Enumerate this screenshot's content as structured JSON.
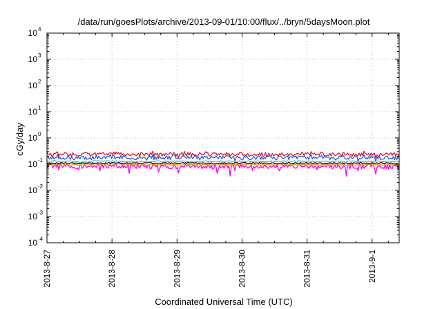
{
  "chart_data": {
    "type": "line",
    "title": "/data/run/goesPlots/archive/2013-09-01/10:00/flux/../bryn/5daysMoon.plot",
    "xlabel": "Coordinated Universal Time (UTC)",
    "ylabel": "cGy/day",
    "yscale": "log",
    "ylim": [
      0.0001,
      10000
    ],
    "xlim": [
      "2013-08-27T00:00",
      "2013-09-01T10:00"
    ],
    "grid": true,
    "legend": "none",
    "y_ticks": [
      {
        "value": 0.0001,
        "base": "10",
        "exp": "-4"
      },
      {
        "value": 0.001,
        "base": "10",
        "exp": "-3"
      },
      {
        "value": 0.01,
        "base": "10",
        "exp": "-2"
      },
      {
        "value": 0.1,
        "base": "10",
        "exp": "-1"
      },
      {
        "value": 1,
        "base": "10",
        "exp": "0"
      },
      {
        "value": 10,
        "base": "10",
        "exp": "1"
      },
      {
        "value": 100,
        "base": "10",
        "exp": "2"
      },
      {
        "value": 1000,
        "base": "10",
        "exp": "3"
      },
      {
        "value": 10000,
        "base": "10",
        "exp": "4"
      }
    ],
    "x_ticks": [
      {
        "value": "2013-08-27T00:00",
        "label": "2013-8-27"
      },
      {
        "value": "2013-08-28T00:00",
        "label": "2013-8-28"
      },
      {
        "value": "2013-08-29T00:00",
        "label": "2013-8-29"
      },
      {
        "value": "2013-08-30T00:00",
        "label": "2013-8-30"
      },
      {
        "value": "2013-08-31T00:00",
        "label": "2013-8-31"
      },
      {
        "value": "2013-09-01T00:00",
        "label": "2013-9-1"
      }
    ],
    "series": [
      {
        "color": "#ff00ff",
        "x": [
          "2013-08-27T00:00",
          "2013-08-27T12:00",
          "2013-08-28T00:00",
          "2013-08-28T12:00",
          "2013-08-29T00:00",
          "2013-08-29T12:00",
          "2013-08-30T00:00",
          "2013-08-30T12:00",
          "2013-08-31T00:00",
          "2013-08-31T12:00",
          "2013-09-01T00:00",
          "2013-09-01T10:00"
        ],
        "values": [
          0.085,
          0.08,
          0.085,
          0.08,
          0.082,
          0.08,
          0.085,
          0.08,
          0.082,
          0.08,
          0.083,
          0.078
        ]
      },
      {
        "color": "#ff8c00",
        "x": [
          "2013-08-27T00:00",
          "2013-08-27T12:00",
          "2013-08-28T00:00",
          "2013-08-28T12:00",
          "2013-08-29T00:00",
          "2013-08-29T12:00",
          "2013-08-30T00:00",
          "2013-08-30T12:00",
          "2013-08-31T00:00",
          "2013-08-31T12:00",
          "2013-09-01T00:00",
          "2013-09-01T10:00"
        ],
        "values": [
          0.098,
          0.097,
          0.099,
          0.096,
          0.098,
          0.097,
          0.098,
          0.096,
          0.097,
          0.096,
          0.098,
          0.095
        ]
      },
      {
        "color": "#000000",
        "x": [
          "2013-08-27T00:00",
          "2013-08-27T12:00",
          "2013-08-28T00:00",
          "2013-08-28T12:00",
          "2013-08-29T00:00",
          "2013-08-29T12:00",
          "2013-08-30T00:00",
          "2013-08-30T12:00",
          "2013-08-31T00:00",
          "2013-08-31T12:00",
          "2013-09-01T00:00",
          "2013-09-01T10:00"
        ],
        "values": [
          0.11,
          0.108,
          0.11,
          0.109,
          0.11,
          0.108,
          0.11,
          0.109,
          0.11,
          0.108,
          0.11,
          0.107
        ]
      },
      {
        "color": "#20c8c8",
        "x": [
          "2013-08-27T00:00",
          "2013-08-27T12:00",
          "2013-08-28T00:00",
          "2013-08-28T12:00",
          "2013-08-29T00:00",
          "2013-08-29T12:00",
          "2013-08-30T00:00",
          "2013-08-30T12:00",
          "2013-08-31T00:00",
          "2013-08-31T12:00",
          "2013-09-01T00:00",
          "2013-09-01T10:00"
        ],
        "values": [
          0.13,
          0.125,
          0.13,
          0.126,
          0.128,
          0.125,
          0.13,
          0.126,
          0.128,
          0.125,
          0.128,
          0.123
        ]
      },
      {
        "color": "#1e50ff",
        "x": [
          "2013-08-27T00:00",
          "2013-08-27T12:00",
          "2013-08-28T00:00",
          "2013-08-28T12:00",
          "2013-08-29T00:00",
          "2013-08-29T12:00",
          "2013-08-30T00:00",
          "2013-08-30T12:00",
          "2013-08-31T00:00",
          "2013-08-31T12:00",
          "2013-09-01T00:00",
          "2013-09-01T10:00"
        ],
        "values": [
          0.18,
          0.17,
          0.19,
          0.17,
          0.18,
          0.17,
          0.18,
          0.17,
          0.18,
          0.17,
          0.18,
          0.17
        ]
      },
      {
        "color": "#e8001a",
        "x": [
          "2013-08-27T00:00",
          "2013-08-27T12:00",
          "2013-08-28T00:00",
          "2013-08-28T12:00",
          "2013-08-29T00:00",
          "2013-08-29T12:00",
          "2013-08-30T00:00",
          "2013-08-30T12:00",
          "2013-08-31T00:00",
          "2013-08-31T12:00",
          "2013-09-01T00:00",
          "2013-09-01T10:00"
        ],
        "values": [
          0.24,
          0.23,
          0.25,
          0.23,
          0.24,
          0.23,
          0.24,
          0.23,
          0.24,
          0.23,
          0.24,
          0.22
        ]
      }
    ]
  }
}
